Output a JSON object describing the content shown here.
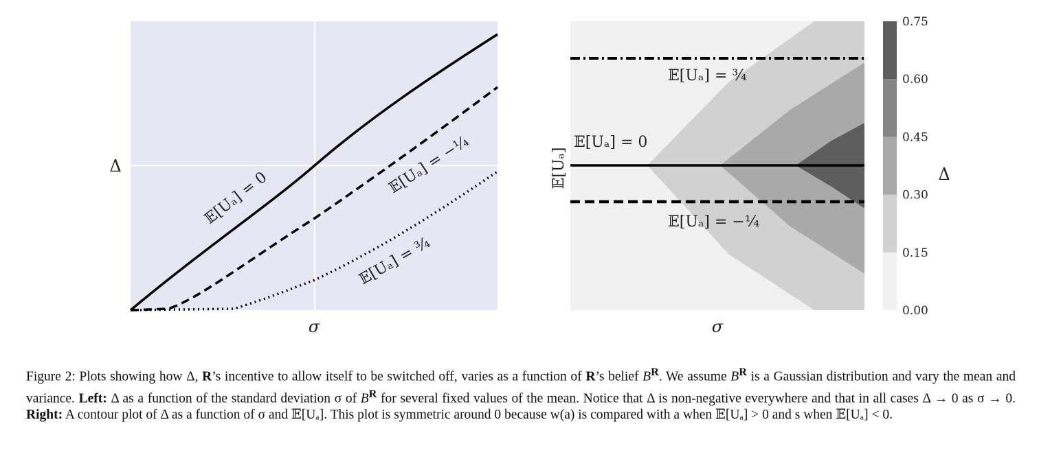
{
  "chart_data": [
    {
      "type": "line",
      "xlabel": "σ",
      "ylabel": "Δ",
      "grid": true,
      "legend": "none",
      "series": [
        {
          "name": "𝔼[Uₐ] = 0",
          "style": "solid"
        },
        {
          "name": "𝔼[Uₐ] = −¼",
          "style": "dashed"
        },
        {
          "name": "𝔼[Uₐ] = ¾",
          "style": "dotted"
        }
      ]
    },
    {
      "type": "heatmap",
      "xlabel": "σ",
      "ylabel": "𝔼[Uₐ]",
      "colorbar_label": "Δ",
      "colorbar_ticks": [
        "0.00",
        "0.15",
        "0.30",
        "0.45",
        "0.60",
        "0.75"
      ],
      "colorbar_levels": [
        0,
        0.15,
        0.3,
        0.45,
        0.6,
        0.75
      ],
      "annotations": [
        {
          "label": "𝔼[Uₐ] = ¾",
          "style": "dashdot"
        },
        {
          "label": "𝔼[Uₐ] = 0",
          "style": "solid"
        },
        {
          "label": "𝔼[Uₐ] = −¼",
          "style": "dashed"
        }
      ]
    }
  ],
  "colors": {
    "left_bg": "#e6e7f2",
    "grid": "#ffffff",
    "line": "#000000",
    "levels": [
      "#f1f1f1",
      "#d1d1d1",
      "#a9a9a9",
      "#858585",
      "#5d5d5d",
      "#202020"
    ]
  },
  "caption": {
    "label": "Figure 2:",
    "p1": " Plots showing how Δ, ",
    "R1": "R",
    "p2": "’s incentive to allow itself to be switched off, varies as a function of ",
    "R2": "R",
    "p3": "’s belief ",
    "B1": "B",
    "p4": ". We assume ",
    "B2": "B",
    "p5": " is a Gaussian distribution and vary the mean and variance. ",
    "left_label": "Left:",
    "p6": " Δ as a function of the standard deviation σ of ",
    "B3": "B",
    "p7": " for several fixed values of the mean. Notice that Δ is non-negative everywhere and that in all cases Δ → 0 as σ → 0. ",
    "right_label": "Right:",
    "p8": " A contour plot of Δ as a function of σ and 𝔼[Uₐ]. This plot is symmetric around 0 because w(a) is compared with a when 𝔼[Uₐ] > 0 and s when 𝔼[Uₐ] < 0.",
    "sup": "R"
  }
}
